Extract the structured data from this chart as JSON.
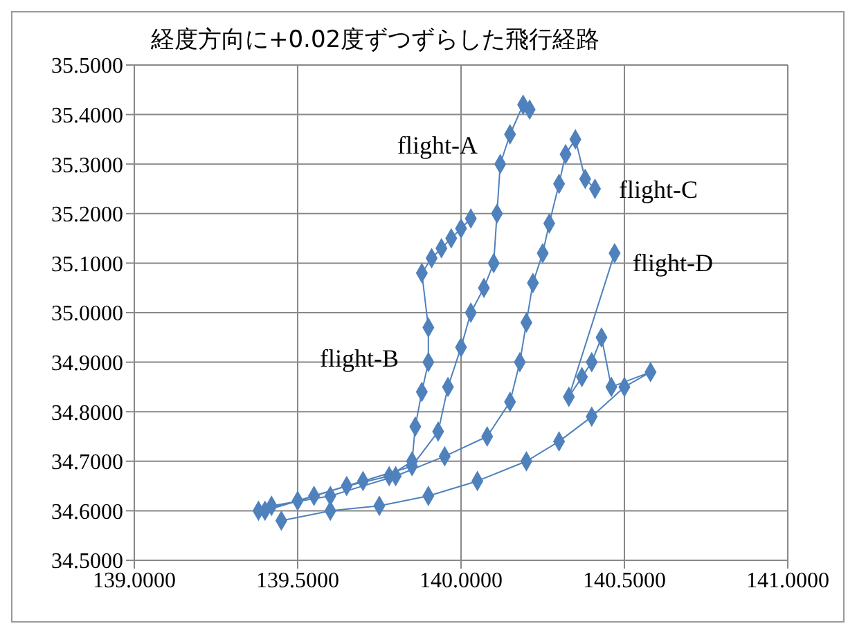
{
  "chart_data": {
    "type": "line",
    "title": "経度方向に+0.02度ずつずらした飛行経路",
    "xlim": [
      139,
      141
    ],
    "xticks": [
      {
        "value": 139,
        "label": "139.0000"
      },
      {
        "value": 139.5,
        "label": "139.5000"
      },
      {
        "value": 140,
        "label": "140.0000"
      },
      {
        "value": 140.5,
        "label": "140.5000"
      },
      {
        "value": 141,
        "label": "141.0000"
      }
    ],
    "ylim": [
      34.5,
      35.5
    ],
    "yticks": [
      {
        "value": 34.5,
        "label": "34.5000"
      },
      {
        "value": 34.6,
        "label": "34.6000"
      },
      {
        "value": 34.7,
        "label": "34.7000"
      },
      {
        "value": 34.8,
        "label": "34.8000"
      },
      {
        "value": 34.9,
        "label": "34.9000"
      },
      {
        "value": 35,
        "label": "35.0000"
      },
      {
        "value": 35.1,
        "label": "35.1000"
      },
      {
        "value": 35.2,
        "label": "35.2000"
      },
      {
        "value": 35.3,
        "label": "35.3000"
      },
      {
        "value": 35.4,
        "label": "35.4000"
      },
      {
        "value": 35.5,
        "label": "35.5000"
      }
    ],
    "grid": true,
    "legend": false,
    "marker": "diamond",
    "line_style": "solid",
    "series": [
      {
        "color": "#4f81bd",
        "x": [
          139.4,
          139.55,
          139.7,
          139.85,
          139.93,
          139.96,
          140.0,
          140.03,
          140.07,
          140.1,
          140.11,
          140.12,
          140.15,
          140.19,
          140.21
        ],
        "values": [
          34.6,
          34.63,
          34.66,
          34.69,
          34.76,
          34.85,
          34.93,
          35.0,
          35.05,
          35.1,
          35.2,
          35.3,
          35.36,
          35.42,
          35.41
        ]
      },
      {
        "color": "#4f81bd",
        "x": [
          139.38,
          139.5,
          139.65,
          139.78,
          139.85,
          139.86,
          139.88,
          139.9,
          139.9,
          139.88,
          139.91,
          139.94,
          139.97,
          140.0,
          140.03
        ],
        "values": [
          34.6,
          34.62,
          34.65,
          34.67,
          34.7,
          34.77,
          34.84,
          34.9,
          34.97,
          35.08,
          35.11,
          35.13,
          35.15,
          35.17,
          35.19
        ]
      },
      {
        "color": "#4f81bd",
        "x": [
          139.42,
          139.6,
          139.8,
          139.95,
          140.08,
          140.15,
          140.18,
          140.2,
          140.22,
          140.25,
          140.27,
          140.3,
          140.32,
          140.35,
          140.38,
          140.41
        ],
        "values": [
          34.61,
          34.63,
          34.67,
          34.71,
          34.75,
          34.82,
          34.9,
          34.98,
          35.06,
          35.12,
          35.18,
          35.26,
          35.32,
          35.35,
          35.27,
          35.25
        ]
      },
      {
        "color": "#4f81bd",
        "x": [
          139.45,
          139.6,
          139.75,
          139.9,
          140.05,
          140.2,
          140.3,
          140.4,
          140.5,
          140.58,
          140.46,
          140.43,
          140.4,
          140.37,
          140.33,
          140.47
        ],
        "values": [
          34.58,
          34.6,
          34.61,
          34.63,
          34.66,
          34.7,
          34.74,
          34.79,
          34.85,
          34.88,
          34.85,
          34.95,
          34.9,
          34.87,
          34.83,
          35.12
        ]
      }
    ],
    "annotations": [
      "flight-A",
      "flight-B",
      "flight-C",
      "flight-D"
    ]
  }
}
